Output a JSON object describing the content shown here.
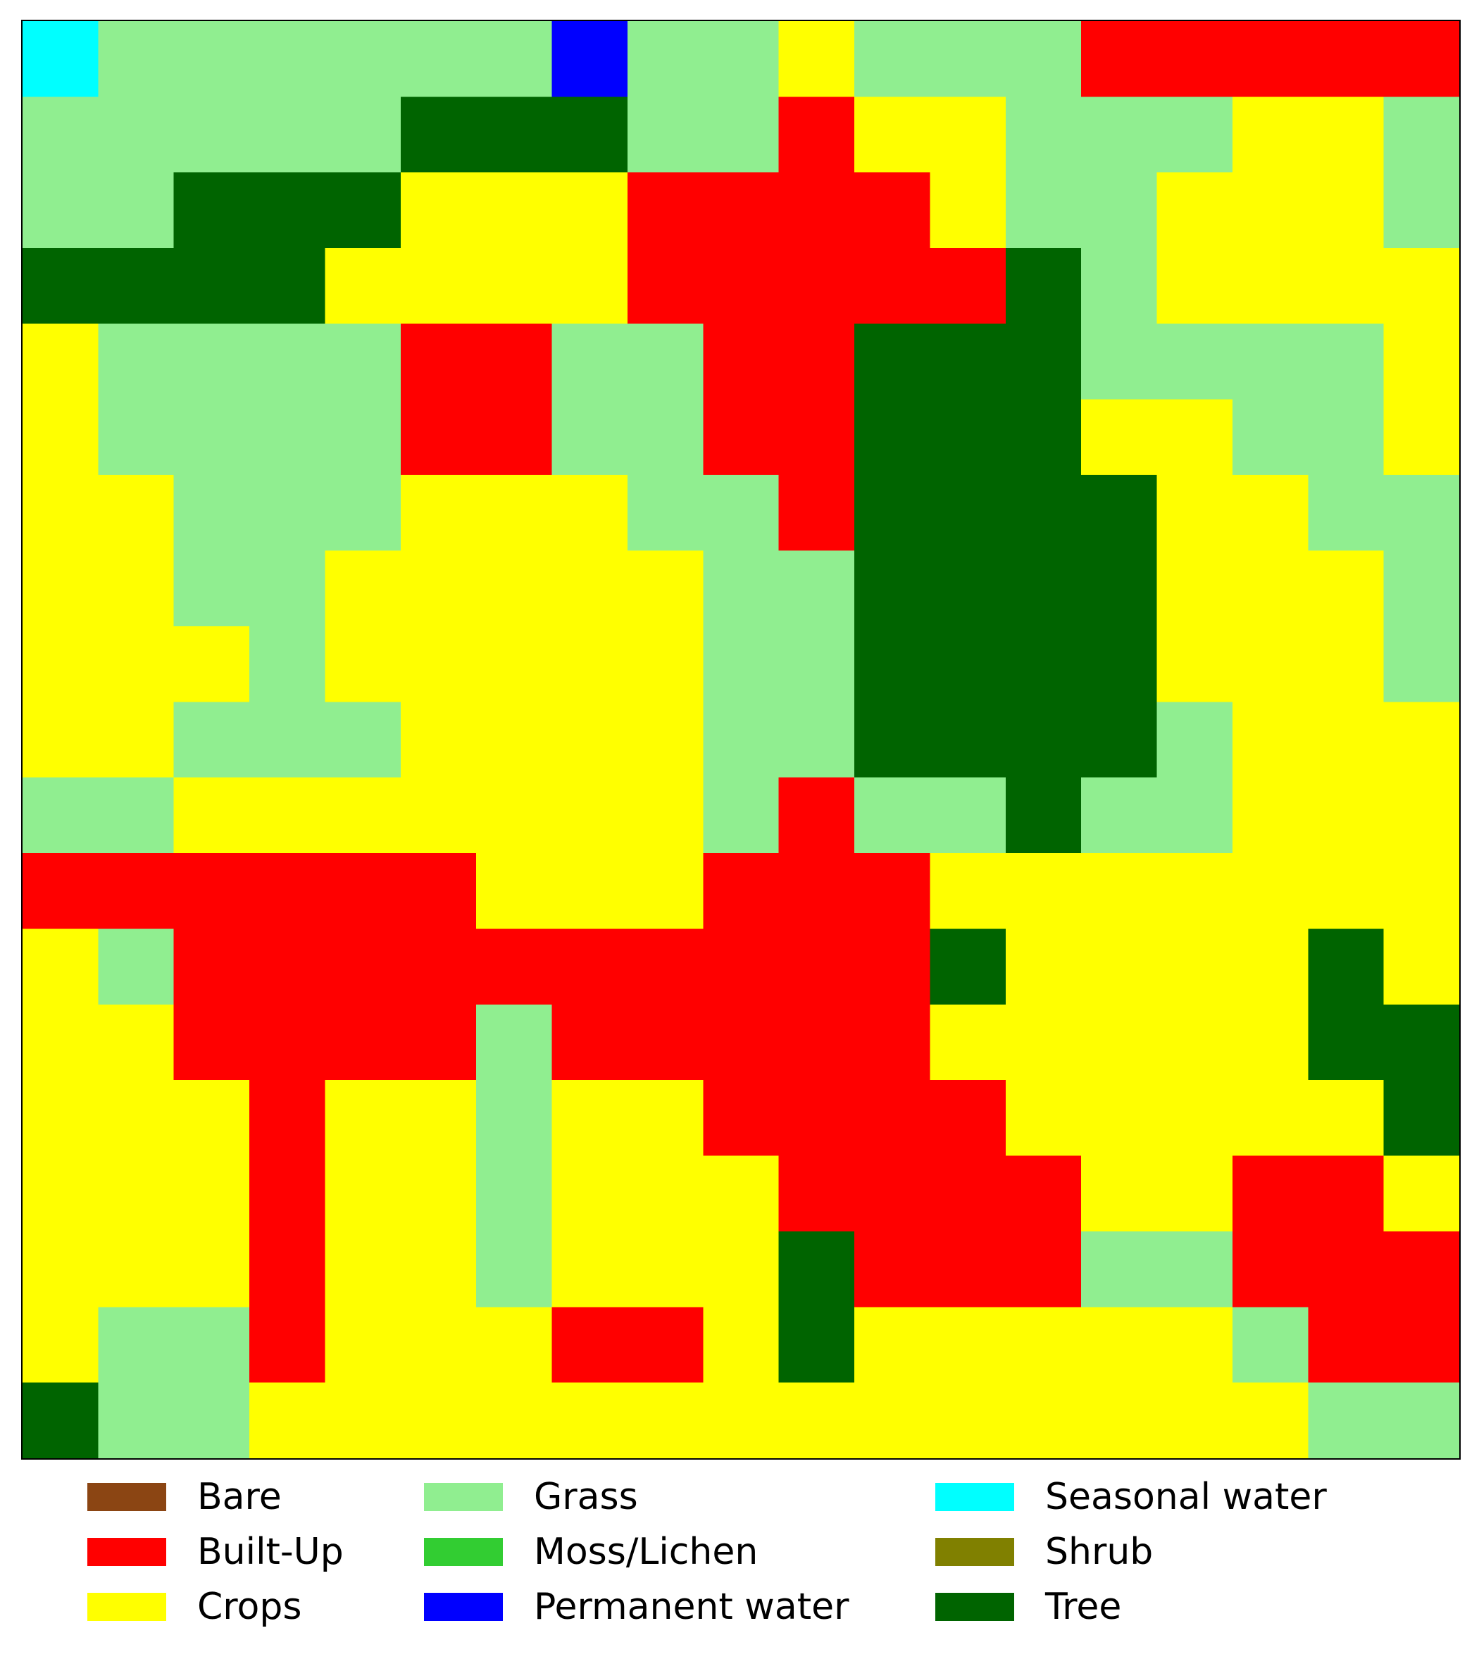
{
  "map": {
    "type": "land-cover-classification",
    "rows": 19,
    "cols": 19,
    "classes": {
      "BA": {
        "label": "Bare",
        "color": "#8B4513"
      },
      "BU": {
        "label": "Built-Up",
        "color": "#FF0000"
      },
      "CR": {
        "label": "Crops",
        "color": "#FFFF00"
      },
      "GR": {
        "label": "Grass",
        "color": "#90EE90"
      },
      "ML": {
        "label": "Moss/Lichen",
        "color": "#32CD32"
      },
      "PW": {
        "label": "Permanent water",
        "color": "#0000FF"
      },
      "SW": {
        "label": "Seasonal water",
        "color": "#00FFFF"
      },
      "SH": {
        "label": "Shrub",
        "color": "#808000"
      },
      "TR": {
        "label": "Tree",
        "color": "#006400"
      }
    },
    "grid": [
      [
        "SW",
        "GR",
        "GR",
        "GR",
        "GR",
        "GR",
        "GR",
        "PW",
        "GR",
        "GR",
        "CR",
        "GR",
        "GR",
        "GR",
        "BU",
        "BU",
        "BU",
        "BU",
        "BU"
      ],
      [
        "GR",
        "GR",
        "GR",
        "GR",
        "GR",
        "TR",
        "TR",
        "TR",
        "GR",
        "GR",
        "BU",
        "CR",
        "CR",
        "GR",
        "GR",
        "GR",
        "CR",
        "CR",
        "GR"
      ],
      [
        "GR",
        "GR",
        "TR",
        "TR",
        "TR",
        "CR",
        "CR",
        "CR",
        "BU",
        "BU",
        "BU",
        "BU",
        "CR",
        "GR",
        "GR",
        "CR",
        "CR",
        "CR",
        "GR"
      ],
      [
        "TR",
        "TR",
        "TR",
        "TR",
        "CR",
        "CR",
        "CR",
        "CR",
        "BU",
        "BU",
        "BU",
        "BU",
        "BU",
        "TR",
        "GR",
        "CR",
        "CR",
        "CR",
        "CR"
      ],
      [
        "CR",
        "GR",
        "GR",
        "GR",
        "GR",
        "BU",
        "BU",
        "GR",
        "GR",
        "BU",
        "BU",
        "TR",
        "TR",
        "TR",
        "GR",
        "GR",
        "GR",
        "GR",
        "CR"
      ],
      [
        "CR",
        "GR",
        "GR",
        "GR",
        "GR",
        "BU",
        "BU",
        "GR",
        "GR",
        "BU",
        "BU",
        "TR",
        "TR",
        "TR",
        "CR",
        "CR",
        "GR",
        "GR",
        "CR"
      ],
      [
        "CR",
        "CR",
        "GR",
        "GR",
        "GR",
        "CR",
        "CR",
        "CR",
        "GR",
        "GR",
        "BU",
        "TR",
        "TR",
        "TR",
        "TR",
        "CR",
        "CR",
        "GR",
        "GR"
      ],
      [
        "CR",
        "CR",
        "GR",
        "GR",
        "CR",
        "CR",
        "CR",
        "CR",
        "CR",
        "GR",
        "GR",
        "TR",
        "TR",
        "TR",
        "TR",
        "CR",
        "CR",
        "CR",
        "GR"
      ],
      [
        "CR",
        "CR",
        "CR",
        "GR",
        "CR",
        "CR",
        "CR",
        "CR",
        "CR",
        "GR",
        "GR",
        "TR",
        "TR",
        "TR",
        "TR",
        "CR",
        "CR",
        "CR",
        "GR"
      ],
      [
        "CR",
        "CR",
        "GR",
        "GR",
        "GR",
        "CR",
        "CR",
        "CR",
        "CR",
        "GR",
        "GR",
        "TR",
        "TR",
        "TR",
        "TR",
        "GR",
        "CR",
        "CR",
        "CR"
      ],
      [
        "GR",
        "GR",
        "CR",
        "CR",
        "CR",
        "CR",
        "CR",
        "CR",
        "CR",
        "GR",
        "BU",
        "GR",
        "GR",
        "TR",
        "GR",
        "GR",
        "CR",
        "CR",
        "CR"
      ],
      [
        "BU",
        "BU",
        "BU",
        "BU",
        "BU",
        "BU",
        "CR",
        "CR",
        "CR",
        "BU",
        "BU",
        "BU",
        "CR",
        "CR",
        "CR",
        "CR",
        "CR",
        "CR",
        "CR"
      ],
      [
        "CR",
        "GR",
        "BU",
        "BU",
        "BU",
        "BU",
        "BU",
        "BU",
        "BU",
        "BU",
        "BU",
        "BU",
        "TR",
        "CR",
        "CR",
        "CR",
        "CR",
        "TR",
        "CR"
      ],
      [
        "CR",
        "CR",
        "BU",
        "BU",
        "BU",
        "BU",
        "GR",
        "BU",
        "BU",
        "BU",
        "BU",
        "BU",
        "CR",
        "CR",
        "CR",
        "CR",
        "CR",
        "TR",
        "TR"
      ],
      [
        "CR",
        "CR",
        "CR",
        "BU",
        "CR",
        "CR",
        "GR",
        "CR",
        "CR",
        "BU",
        "BU",
        "BU",
        "BU",
        "CR",
        "CR",
        "CR",
        "CR",
        "CR",
        "TR"
      ],
      [
        "CR",
        "CR",
        "CR",
        "BU",
        "CR",
        "CR",
        "GR",
        "CR",
        "CR",
        "CR",
        "BU",
        "BU",
        "BU",
        "BU",
        "CR",
        "CR",
        "BU",
        "BU",
        "CR"
      ],
      [
        "CR",
        "CR",
        "CR",
        "BU",
        "CR",
        "CR",
        "GR",
        "CR",
        "CR",
        "CR",
        "TR",
        "BU",
        "BU",
        "BU",
        "GR",
        "GR",
        "BU",
        "BU",
        "BU"
      ],
      [
        "CR",
        "GR",
        "GR",
        "BU",
        "CR",
        "CR",
        "CR",
        "BU",
        "BU",
        "CR",
        "TR",
        "CR",
        "CR",
        "CR",
        "CR",
        "CR",
        "GR",
        "BU",
        "BU"
      ],
      [
        "TR",
        "GR",
        "GR",
        "CR",
        "CR",
        "CR",
        "CR",
        "CR",
        "CR",
        "CR",
        "CR",
        "CR",
        "CR",
        "CR",
        "CR",
        "CR",
        "CR",
        "GR",
        "GR"
      ]
    ]
  },
  "legend": {
    "columns": [
      [
        {
          "label": "Bare",
          "color": "#8B4513"
        },
        {
          "label": "Built-Up",
          "color": "#FF0000"
        },
        {
          "label": "Crops",
          "color": "#FFFF00"
        }
      ],
      [
        {
          "label": "Grass",
          "color": "#90EE90"
        },
        {
          "label": "Moss/Lichen",
          "color": "#32CD32"
        },
        {
          "label": "Permanent water",
          "color": "#0000FF"
        }
      ],
      [
        {
          "label": "Seasonal water",
          "color": "#00FFFF"
        },
        {
          "label": "Shrub",
          "color": "#808000"
        },
        {
          "label": "Tree",
          "color": "#006400"
        }
      ]
    ]
  }
}
